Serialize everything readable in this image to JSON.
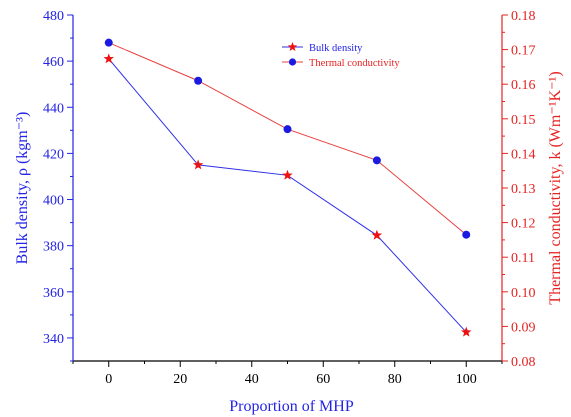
{
  "chart_data": {
    "type": "line",
    "x": [
      0,
      25,
      50,
      75,
      100
    ],
    "series": [
      {
        "name": "Bulk density",
        "axis": "left",
        "marker": "star",
        "values": [
          461,
          415,
          410.5,
          384.5,
          342.5
        ]
      },
      {
        "name": "Thermal conductivity",
        "axis": "right",
        "marker": "circle",
        "values": [
          0.172,
          0.161,
          0.147,
          0.138,
          0.1165
        ]
      }
    ],
    "xlabel": "Proportion of MHP",
    "ylabel_left": "Bulk density, ρ (kgm⁻³)",
    "ylabel_right": "Thermal conductivity, k (Wm⁻¹K⁻¹)",
    "xlim": [
      -10,
      110
    ],
    "xticks": [
      0,
      20,
      40,
      60,
      80,
      100
    ],
    "ylim_left": [
      330,
      480
    ],
    "yticks_left": [
      340,
      360,
      380,
      400,
      420,
      440,
      460,
      480
    ],
    "ylim_right": [
      0.08,
      0.18
    ],
    "yticks_right": [
      "0.08",
      "0.09",
      "0.10",
      "0.11",
      "0.12",
      "0.13",
      "0.14",
      "0.15",
      "0.16",
      "0.17",
      "0.18"
    ],
    "grid": false,
    "legend_position": "top-right",
    "colors": {
      "left_axis": "#2323e6",
      "right_axis": "#e62323",
      "bulk_density_line": "#3030e8",
      "bulk_density_marker": "#ee1111",
      "thermal_line": "#e84040",
      "thermal_marker": "#1a1ae0",
      "bottom_axis": "#000000"
    }
  }
}
